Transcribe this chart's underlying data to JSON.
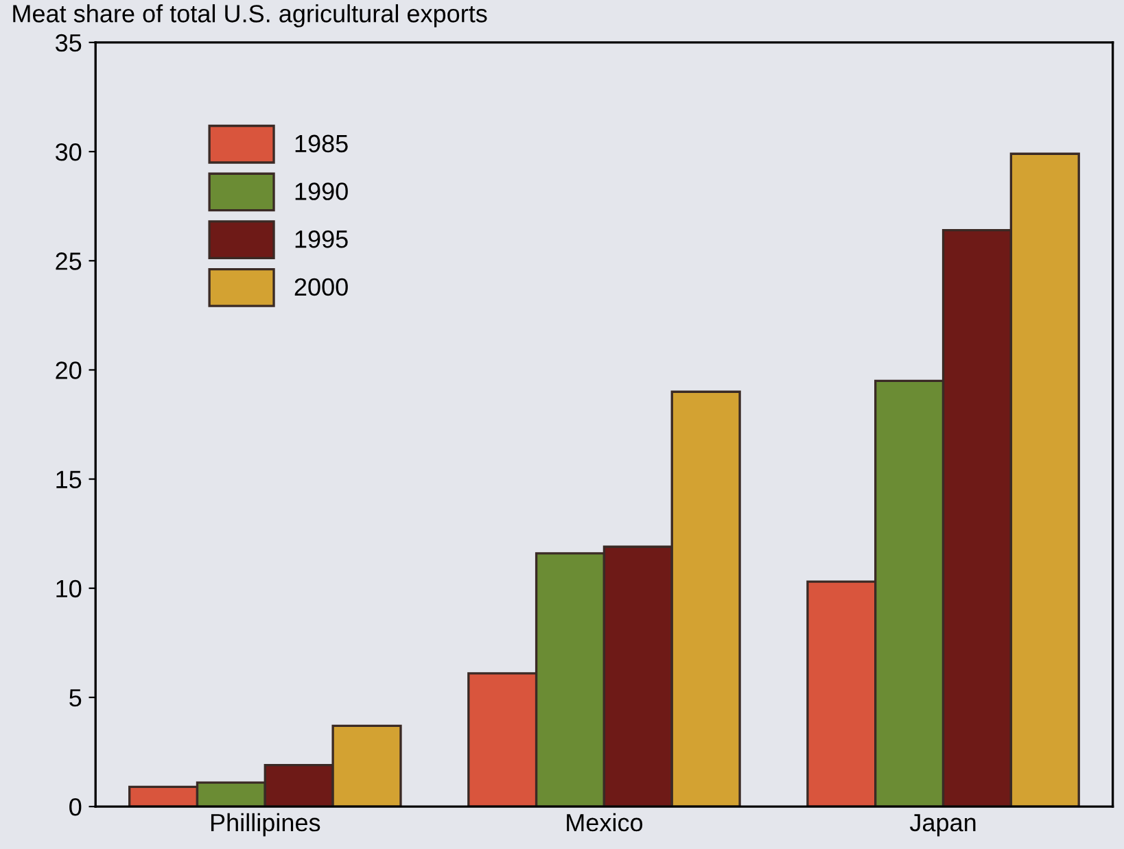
{
  "chart_data": {
    "type": "bar",
    "title": "Meat share of total U.S. agricultural exports",
    "categories": [
      "Phillipines",
      "Mexico",
      "Japan"
    ],
    "series": [
      {
        "name": "1985",
        "color": "#d9553d",
        "values": [
          0.9,
          6.1,
          10.3
        ]
      },
      {
        "name": "1990",
        "color": "#6b8c34",
        "values": [
          1.1,
          11.6,
          19.5
        ]
      },
      {
        "name": "1995",
        "color": "#6e1a17",
        "values": [
          1.9,
          11.9,
          26.4
        ]
      },
      {
        "name": "2000",
        "color": "#d3a232",
        "values": [
          3.7,
          19.0,
          29.9
        ]
      }
    ],
    "ylim": [
      0,
      35
    ],
    "yticks": [
      0,
      5,
      10,
      15,
      20,
      25,
      30,
      35
    ],
    "grid": false,
    "legend": "top left"
  }
}
